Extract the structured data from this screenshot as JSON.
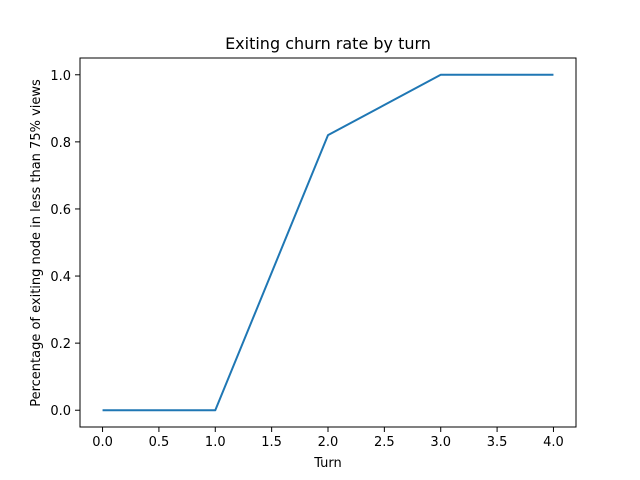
{
  "chart_data": {
    "type": "line",
    "title": "Exiting churn rate by turn",
    "xlabel": "Turn",
    "ylabel": "Percentage of exiting node in less than 75% views",
    "x": [
      0,
      1,
      2,
      3,
      4
    ],
    "series": [
      {
        "values": [
          0.0,
          0.0,
          0.82,
          1.0,
          1.0
        ],
        "color": "#1f77b4"
      }
    ],
    "xlim": [
      -0.2,
      4.2
    ],
    "ylim": [
      -0.05,
      1.05
    ],
    "xticks": [
      0.0,
      0.5,
      1.0,
      1.5,
      2.0,
      2.5,
      3.0,
      3.5,
      4.0
    ],
    "xtick_labels": [
      "0.0",
      "0.5",
      "1.0",
      "1.5",
      "2.0",
      "2.5",
      "3.0",
      "3.5",
      "4.0"
    ],
    "yticks": [
      0.0,
      0.2,
      0.4,
      0.6,
      0.8,
      1.0
    ],
    "ytick_labels": [
      "0.0",
      "0.2",
      "0.4",
      "0.6",
      "0.8",
      "1.0"
    ],
    "grid": false,
    "legend": "none"
  }
}
